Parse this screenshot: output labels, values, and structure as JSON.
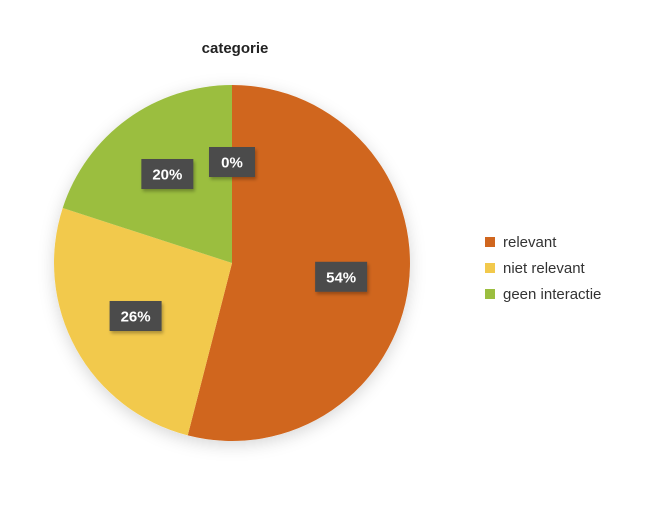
{
  "chart_data": {
    "type": "pie",
    "title": "categorie",
    "series": [
      {
        "name": "categorie",
        "values": [
          54,
          26,
          20,
          0
        ]
      }
    ],
    "categories": [
      "relevant",
      "niet relevant",
      "geen interactie",
      ""
    ],
    "slices": [
      {
        "label": "relevant",
        "value": 54,
        "display": "54%",
        "color": "#D0661E"
      },
      {
        "label": "niet relevant",
        "value": 26,
        "display": "26%",
        "color": "#F2C94C"
      },
      {
        "label": "geen interactie",
        "value": 20,
        "display": "20%",
        "color": "#9BBE3F"
      },
      {
        "label": "",
        "value": 0,
        "display": "0%",
        "color": "#4A4A4A"
      }
    ],
    "legend": {
      "placement": "right",
      "items": [
        {
          "label": "relevant",
          "color": "#D0661E"
        },
        {
          "label": "niet relevant",
          "color": "#F2C94C"
        },
        {
          "label": "geen interactie",
          "color": "#9BBE3F"
        }
      ]
    },
    "grid": false
  }
}
